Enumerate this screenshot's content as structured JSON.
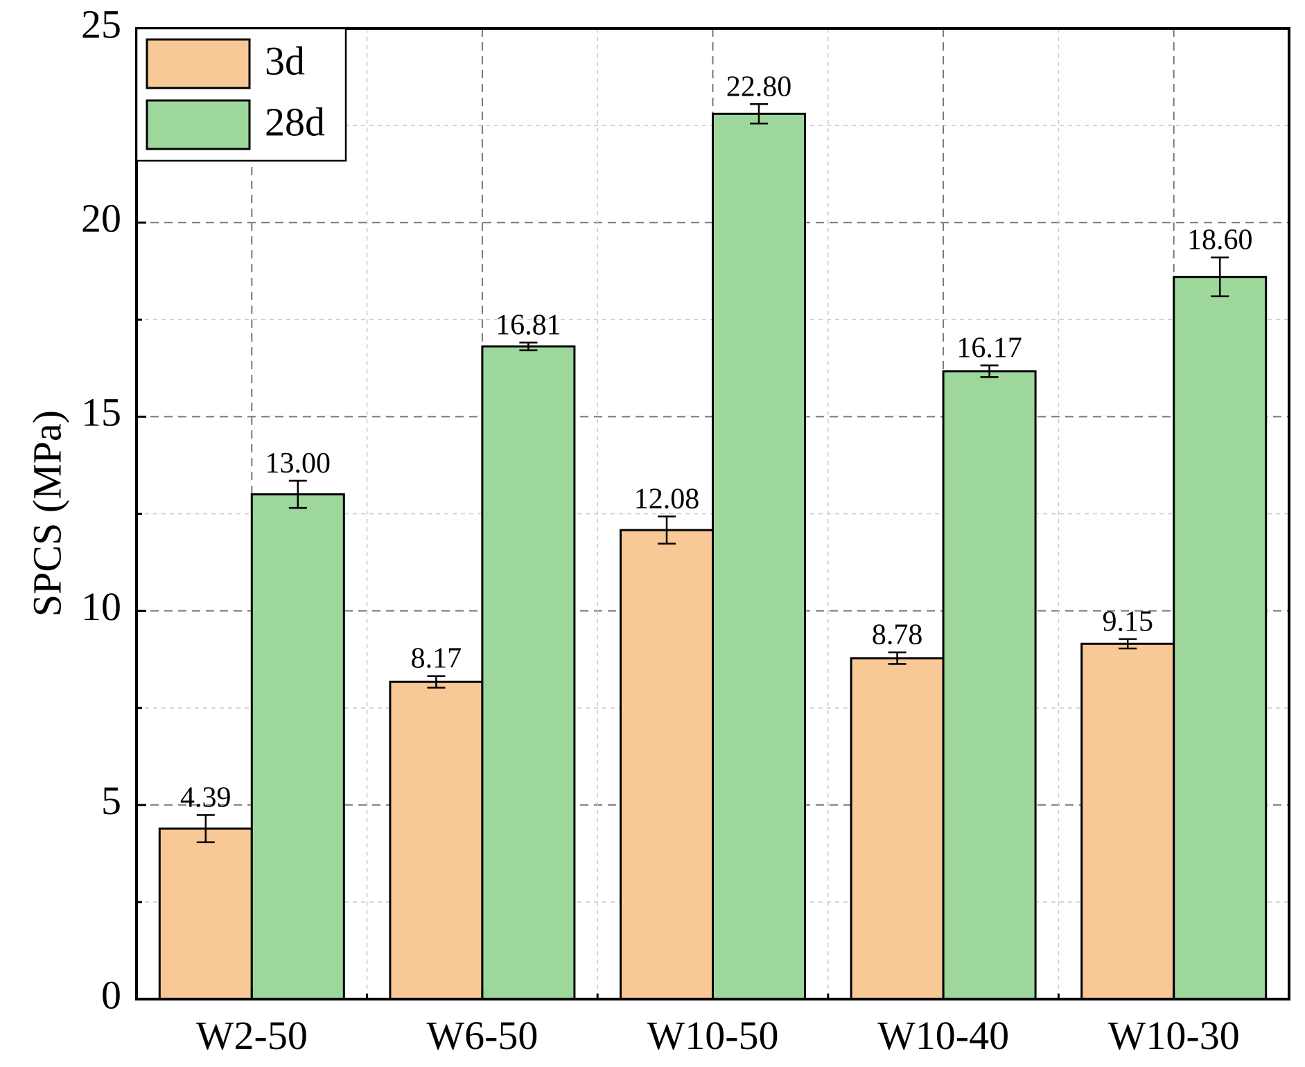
{
  "chart_data": {
    "type": "bar",
    "title": "",
    "xlabel": "",
    "ylabel": "SPCS (MPa)",
    "ylim": [
      0,
      25
    ],
    "yticks": [
      0,
      5,
      10,
      15,
      20,
      25
    ],
    "yticklabels": [
      "0",
      "5",
      "10",
      "15",
      "20",
      "25"
    ],
    "categories": [
      "W2-50",
      "W6-50",
      "W10-50",
      "W10-40",
      "W10-30"
    ],
    "grid": true,
    "legend_position": "top-left",
    "series": [
      {
        "name": "3d",
        "color": "#F9C897",
        "values": [
          4.39,
          8.17,
          12.08,
          8.78,
          9.15
        ],
        "errors": [
          0.35,
          0.15,
          0.35,
          0.15,
          0.12
        ],
        "value_labels": [
          "4.39",
          "8.17",
          "12.08",
          "8.78",
          "9.15"
        ]
      },
      {
        "name": "28d",
        "color": "#9DD79B",
        "values": [
          13.0,
          16.81,
          22.8,
          16.17,
          18.6
        ],
        "errors": [
          0.35,
          0.1,
          0.25,
          0.15,
          0.5
        ],
        "value_labels": [
          "13.00",
          "16.81",
          "22.80",
          "16.17",
          "18.60"
        ]
      }
    ]
  }
}
